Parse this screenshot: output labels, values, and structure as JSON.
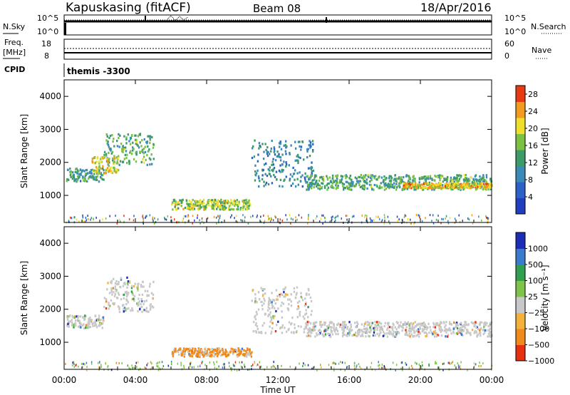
{
  "header": {
    "station": "Kapuskasing (fitACF)",
    "beam": "Beam 08",
    "date": "18/Apr/2016"
  },
  "noise_panel": {
    "left_label": "N.Sky",
    "right_label": "N.Search",
    "left_ticks": [
      "10^5",
      "10^0"
    ],
    "right_ticks": [
      "10^5",
      "10^0"
    ]
  },
  "freq_panel": {
    "left_label_line1": "Freq.",
    "left_label_line2": "[MHz]",
    "left_ticks": [
      "18",
      "8"
    ],
    "right_label": "Nave",
    "right_ticks": [
      "60",
      "0"
    ]
  },
  "cpid": {
    "label": "CPID",
    "value": "themis -3300"
  },
  "time_axis": {
    "label": "Time UT",
    "ticks": [
      "00:00",
      "04:00",
      "08:00",
      "12:00",
      "16:00",
      "20:00",
      "00:00"
    ]
  },
  "colors": {
    "power": [
      "#1f3fbf",
      "#2c62c8",
      "#3b8bb8",
      "#3d9b6a",
      "#7bc142",
      "#f0df2a",
      "#f39b1f",
      "#e83a12"
    ],
    "velocity": [
      "#1b2cb8",
      "#3b7bcf",
      "#2f9f50",
      "#7fc44a",
      "#c8c8c8",
      "#f5b23a",
      "#f08a1a",
      "#e63010"
    ]
  },
  "chart_data": [
    {
      "type": "heatmap",
      "title": "",
      "xlabel": "",
      "ylabel": "Slant Range [km]",
      "xlim": [
        0,
        24
      ],
      "ylim": [
        180,
        4500
      ],
      "yticks": [
        "1000",
        "2000",
        "3000",
        "4000"
      ],
      "colorbar": {
        "label": "Power [dB]",
        "ticks": [
          "4",
          "8",
          "12",
          "16",
          "20",
          "24",
          "28"
        ],
        "range": [
          0,
          30
        ]
      },
      "bands": [
        {
          "t": [
            0.1,
            2.2
          ],
          "range": [
            1450,
            1850
          ],
          "level": 12
        },
        {
          "t": [
            2.2,
            5.0
          ],
          "range": [
            1950,
            2900
          ],
          "level": 14
        },
        {
          "t": [
            1.5,
            3.0
          ],
          "range": [
            1700,
            2200
          ],
          "level": 20
        },
        {
          "t": [
            6.0,
            10.5
          ],
          "range": [
            600,
            900
          ],
          "level": 18
        },
        {
          "t": [
            10.5,
            14.0
          ],
          "range": [
            1300,
            2700
          ],
          "level": 10
        },
        {
          "t": [
            13.5,
            24.0
          ],
          "range": [
            1200,
            1650
          ],
          "level": 14
        },
        {
          "t": [
            19.0,
            24.0
          ],
          "range": [
            1250,
            1400
          ],
          "level": 22
        }
      ]
    },
    {
      "type": "heatmap",
      "title": "",
      "xlabel": "Time UT",
      "ylabel": "Slant Range [km]",
      "xlim": [
        0,
        24
      ],
      "ylim": [
        180,
        4500
      ],
      "yticks": [
        "1000",
        "2000",
        "3000",
        "4000"
      ],
      "colorbar": {
        "label": "Velocity [m s⁻¹]",
        "ticks": [
          "1000",
          "500",
          "100",
          "25",
          "−25",
          "−100",
          "−500",
          "−1000"
        ]
      },
      "bands": [
        {
          "t": [
            0.1,
            2.2
          ],
          "range": [
            1450,
            1850
          ],
          "velocity": 0
        },
        {
          "t": [
            2.2,
            5.0
          ],
          "range": [
            1950,
            3000
          ],
          "velocity": 0
        },
        {
          "t": [
            6.0,
            10.5
          ],
          "range": [
            600,
            850
          ],
          "velocity": -150
        },
        {
          "t": [
            10.5,
            14.0
          ],
          "range": [
            1300,
            2700
          ],
          "velocity": 0
        },
        {
          "t": [
            13.5,
            24.0
          ],
          "range": [
            1200,
            1650
          ],
          "velocity": 0
        }
      ]
    }
  ]
}
